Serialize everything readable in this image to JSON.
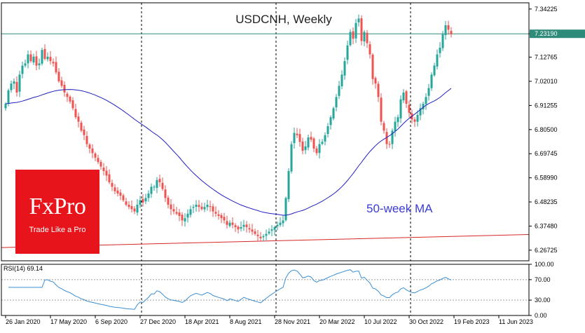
{
  "title": "USDCNH, Weekly",
  "ma_label": "50-week MA",
  "logo": {
    "brand": "FxPro",
    "tagline": "Trade Like a Pro"
  },
  "colors": {
    "up": "#26a69a",
    "down": "#ef5350",
    "ma": "#1f1fbf",
    "support": "#d62728",
    "rsi": "#3b8fd1",
    "price_line": "#2e8b7a",
    "price_tag": "#2e8b7a"
  },
  "chart_data": [
    {
      "type": "candlestick",
      "title": "USDCNH, Weekly",
      "ylim": [
        6.22,
        7.37
      ],
      "y_ticks": [
        "7.34225",
        "7.23190",
        "7.12765",
        "7.02010",
        "6.91255",
        "6.80500",
        "6.69745",
        "6.58990",
        "6.48235",
        "6.37480",
        "6.26725"
      ],
      "y_tick_values": [
        7.34225,
        7.2319,
        7.12765,
        7.0201,
        6.91255,
        6.805,
        6.69745,
        6.5899,
        6.48235,
        6.3748,
        6.26725
      ],
      "x_ticks": [
        "26 Jan 2020",
        "17 May 2020",
        "6 Sep 2020",
        "27 Dec 2020",
        "18 Apr 2021",
        "8 Aug 2021",
        "28 Nov 2021",
        "20 Mar 2022",
        "10 Jul 2022",
        "30 Oct 2022",
        "19 Feb 2023",
        "11 Jun 2023"
      ],
      "x_tick_weeks": [
        0,
        16,
        32,
        48,
        64,
        80,
        96,
        112,
        128,
        144,
        160,
        176
      ],
      "vlines_at_ticks": [
        "27 Dec 2020",
        "28 Nov 2021",
        "30 Oct 2022"
      ],
      "current_price": 7.2319,
      "weekly_closes": [
        6.92,
        6.98,
        7.01,
        7.02,
        6.97,
        7.05,
        7.09,
        7.1,
        7.14,
        7.11,
        7.13,
        7.09,
        7.1,
        7.16,
        7.12,
        7.13,
        7.11,
        7.1,
        7.06,
        7.02,
        7.0,
        6.97,
        6.95,
        6.93,
        6.9,
        6.86,
        6.84,
        6.8,
        6.78,
        6.74,
        6.72,
        6.7,
        6.68,
        6.66,
        6.64,
        6.62,
        6.6,
        6.57,
        6.55,
        6.53,
        6.52,
        6.51,
        6.49,
        6.47,
        6.46,
        6.45,
        6.44,
        6.47,
        6.49,
        6.48,
        6.5,
        6.52,
        6.55,
        6.55,
        6.58,
        6.57,
        6.54,
        6.5,
        6.47,
        6.45,
        6.44,
        6.43,
        6.42,
        6.4,
        6.41,
        6.43,
        6.45,
        6.46,
        6.47,
        6.46,
        6.45,
        6.46,
        6.47,
        6.46,
        6.44,
        6.43,
        6.42,
        6.41,
        6.4,
        6.38,
        6.39,
        6.38,
        6.37,
        6.36,
        6.37,
        6.38,
        6.37,
        6.36,
        6.35,
        6.34,
        6.33,
        6.32,
        6.33,
        6.34,
        6.35,
        6.36,
        6.37,
        6.38,
        6.39,
        6.4,
        6.5,
        6.62,
        6.74,
        6.79,
        6.78,
        6.75,
        6.71,
        6.73,
        6.77,
        6.76,
        6.72,
        6.7,
        6.74,
        6.75,
        6.78,
        6.82,
        6.86,
        6.9,
        6.95,
        7.0,
        7.05,
        7.11,
        7.18,
        7.24,
        7.21,
        7.28,
        7.3,
        7.2,
        7.24,
        7.19,
        7.14,
        7.03,
        7.01,
        6.95,
        6.84,
        6.8,
        6.74,
        6.74,
        6.8,
        6.84,
        6.86,
        6.94,
        6.97,
        6.92,
        6.88,
        6.85,
        6.84,
        6.87,
        6.9,
        6.92,
        6.95,
        6.99,
        7.05,
        7.09,
        7.14,
        7.17,
        7.23,
        7.27,
        7.25,
        7.23
      ]
    },
    {
      "type": "line",
      "title": "RSI(14) 69.14",
      "ylim": [
        0,
        100
      ],
      "y_ticks": [
        "100.00",
        "70.00",
        "30.00",
        "0.00"
      ],
      "y_tick_values": [
        100,
        70,
        30,
        0
      ],
      "levels": [
        70,
        30
      ],
      "current_value": 69.14
    }
  ]
}
